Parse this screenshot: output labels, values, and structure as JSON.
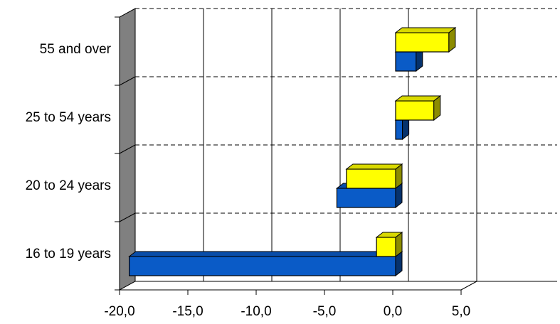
{
  "chart_data": {
    "type": "bar",
    "orientation": "horizontal",
    "style": "3d",
    "categories": [
      "16 to 19 years",
      "20 to 24 years",
      "25 to 54 years",
      "55 and over"
    ],
    "series": [
      {
        "values": [
          -19.5,
          -4.3,
          0.5,
          1.5
        ],
        "color": "#0A5BC7"
      },
      {
        "values": [
          -1.4,
          -3.6,
          2.8,
          3.9
        ],
        "color": "#FFFF00"
      }
    ],
    "xlim": [
      -20,
      5
    ],
    "x_ticks": [
      -20,
      -15,
      -10,
      -5,
      0,
      5
    ],
    "tick_labels": [
      "-20,0",
      "-15,0",
      "-10,0",
      "-5,0",
      "0,0",
      "5,0"
    ],
    "grid": {
      "vertical": "solid",
      "horizontal": "dashed"
    },
    "legend": "none",
    "title": "",
    "xlabel": "",
    "ylabel": ""
  }
}
